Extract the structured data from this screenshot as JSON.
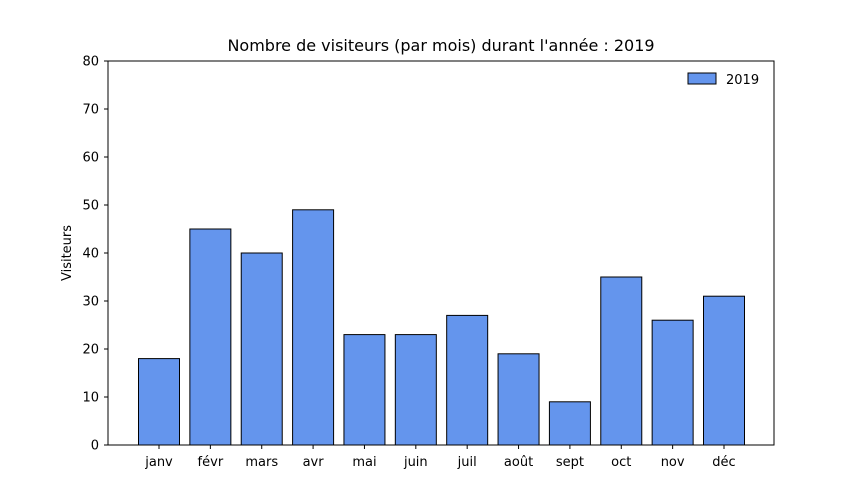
{
  "chart_data": {
    "type": "bar",
    "title": "Nombre de visiteurs (par mois) durant l'année : 2019",
    "xlabel": "",
    "ylabel": "Visiteurs",
    "categories": [
      "janv",
      "févr",
      "mars",
      "avr",
      "mai",
      "juin",
      "juil",
      "août",
      "sept",
      "oct",
      "nov",
      "déc"
    ],
    "series": [
      {
        "name": "2019",
        "values": [
          18,
          45,
          40,
          49,
          23,
          23,
          27,
          19,
          9,
          35,
          26,
          31
        ]
      }
    ],
    "ylim": [
      0,
      80
    ],
    "yticks": [
      0,
      10,
      20,
      30,
      40,
      50,
      60,
      70,
      80
    ],
    "grid": false,
    "legend_position": "top-right",
    "colors": {
      "bar_fill": "#6495ED",
      "bar_edge": "#000000"
    }
  }
}
